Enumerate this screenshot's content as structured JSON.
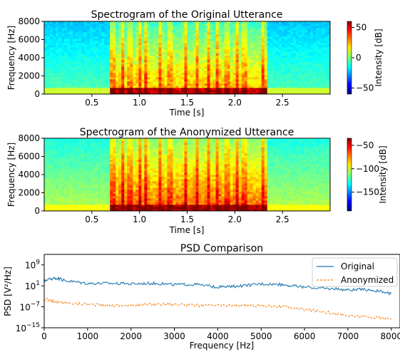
{
  "chart_data": [
    {
      "type": "heatmap",
      "title": "Spectrogram of the Original Utterance",
      "xlabel": "Time [s]",
      "ylabel": "Frequency [Hz]",
      "xlim": [
        0,
        3.0
      ],
      "ylim": [
        0,
        8000
      ],
      "xticks": [
        0.5,
        1.0,
        1.5,
        2.0,
        2.5
      ],
      "xtick_labels": [
        "0.5",
        "1.0",
        "1.5",
        "2.0",
        "2.5"
      ],
      "yticks": [
        0,
        2000,
        4000,
        6000,
        8000
      ],
      "ytick_labels": [
        "0",
        "2000",
        "4000",
        "6000",
        "8000"
      ],
      "colorbar": {
        "label": "Intensity [dB]",
        "range": [
          -60,
          60
        ],
        "ticks": [
          50,
          0,
          -50
        ],
        "tick_labels": [
          "50",
          "0",
          "−50"
        ]
      },
      "colormap": "jet",
      "speech_region_s": [
        0.7,
        2.35
      ],
      "speech_onsets_s": [
        0.72,
        0.82,
        0.9,
        1.0,
        1.07,
        1.22,
        1.32,
        1.48,
        1.6,
        1.72,
        1.82,
        1.92,
        2.02,
        2.1,
        2.3
      ],
      "background_level": "green/cyan"
    },
    {
      "type": "heatmap",
      "title": "Spectrogram of the Anonymized Utterance",
      "xlabel": "Time [s]",
      "ylabel": "Frequency [Hz]",
      "xlim": [
        0,
        3.0
      ],
      "ylim": [
        0,
        8000
      ],
      "xticks": [
        0.5,
        1.0,
        1.5,
        2.0,
        2.5
      ],
      "xtick_labels": [
        "0.5",
        "1.0",
        "1.5",
        "2.0",
        "2.5"
      ],
      "yticks": [
        0,
        2000,
        4000,
        6000,
        8000
      ],
      "ytick_labels": [
        "0",
        "2000",
        "4000",
        "6000",
        "8000"
      ],
      "colorbar": {
        "label": "Intensity [dB]",
        "range": [
          -190,
          -35
        ],
        "ticks": [
          -50,
          -100,
          -150
        ],
        "tick_labels": [
          "−50",
          "−100",
          "−150"
        ]
      },
      "colormap": "jet",
      "speech_region_s": [
        0.7,
        2.35
      ],
      "speech_onsets_s": [
        0.72,
        0.82,
        0.9,
        1.0,
        1.07,
        1.22,
        1.32,
        1.48,
        1.6,
        1.72,
        1.82,
        1.92,
        2.02,
        2.1,
        2.3
      ],
      "background_level": "yellow/green"
    },
    {
      "type": "line",
      "title": "PSD Comparison",
      "xlabel": "Frequency [Hz]",
      "ylabel": "PSD [V²/Hz]",
      "y_scale": "log",
      "xlim": [
        0,
        8200
      ],
      "ylim_exponent": [
        -15,
        13
      ],
      "xticks": [
        0,
        1000,
        2000,
        3000,
        4000,
        5000,
        6000,
        7000,
        8000
      ],
      "xtick_labels": [
        "0",
        "1000",
        "2000",
        "3000",
        "4000",
        "5000",
        "6000",
        "7000",
        "8000"
      ],
      "ytick_exponents": [
        9,
        1,
        -7,
        -15
      ],
      "ytick_mantissa": "10",
      "legend_position": "top-right",
      "x": [
        0,
        250,
        500,
        1000,
        1500,
        2000,
        2500,
        3000,
        3500,
        4000,
        4500,
        5000,
        5500,
        6000,
        6500,
        7000,
        7500,
        8000
      ],
      "series": [
        {
          "name": "Original",
          "color": "#1f77b4",
          "style": "solid",
          "log10_values": [
            3,
            4,
            3,
            2,
            2,
            1.8,
            2,
            1.5,
            1.5,
            0.5,
            0.8,
            1.8,
            1.5,
            0.5,
            0,
            -0.5,
            -0.5,
            -2
          ]
        },
        {
          "name": "Anonymized",
          "color": "#ff7f0e",
          "style": "dashed",
          "log10_values": [
            -4,
            -5,
            -5.5,
            -6,
            -6.5,
            -6.5,
            -6,
            -6,
            -6.5,
            -6.5,
            -6.5,
            -6.5,
            -7,
            -8,
            -9,
            -10.5,
            -11,
            -11.5
          ]
        }
      ]
    }
  ]
}
